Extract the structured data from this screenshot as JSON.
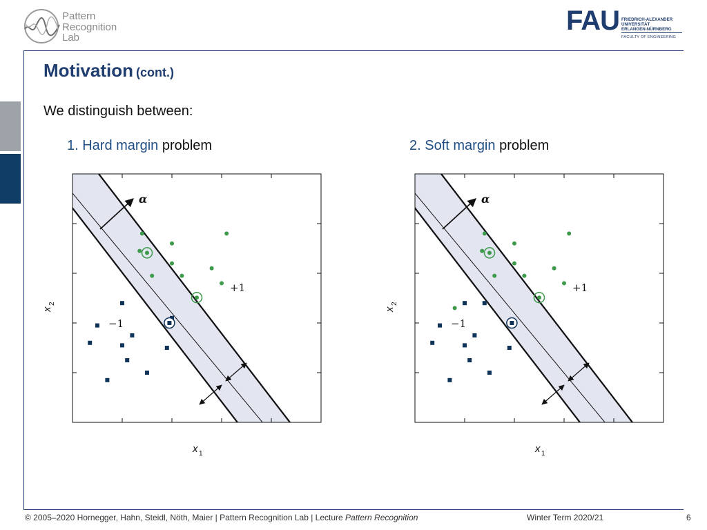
{
  "header": {
    "lab_logo_lines": [
      "Pattern",
      "Recognition",
      "Lab"
    ],
    "fau": {
      "mark": "FAU",
      "lines": [
        "FRIEDRICH-ALEXANDER",
        "UNIVERSITÄT",
        "ERLANGEN-NÜRNBERG"
      ],
      "faculty": "FACULTY OF ENGINEERING"
    }
  },
  "slide": {
    "title": "Motivation",
    "title_suffix": "(cont.)",
    "intro": "We distinguish between:",
    "items": [
      {
        "prefix": "1. Hard margin",
        "suffix": " problem"
      },
      {
        "prefix": "2. Soft margin",
        "suffix": " problem"
      }
    ]
  },
  "figures": [
    {
      "id": "hard",
      "labels": {
        "alpha": "α",
        "plus": "+1",
        "minus": "−1",
        "x1": "x",
        "x1_sub": "1",
        "x2": "x",
        "x2_sub": "2"
      },
      "positive_points": [
        [
          1.4,
          1.2
        ],
        [
          2.0,
          1.4
        ],
        [
          3.1,
          1.2
        ],
        [
          1.35,
          1.55
        ],
        [
          2.0,
          1.8
        ],
        [
          2.8,
          1.9
        ],
        [
          1.6,
          2.05
        ],
        [
          2.2,
          2.05
        ],
        [
          3.0,
          2.2
        ]
      ],
      "negative_points": [
        [
          1.0,
          2.6
        ],
        [
          0.5,
          3.05
        ],
        [
          1.2,
          3.25
        ],
        [
          1.1,
          3.75
        ],
        [
          1.9,
          3.5
        ],
        [
          2.0,
          2.9
        ],
        [
          1.0,
          3.45
        ],
        [
          0.7,
          4.15
        ],
        [
          1.5,
          4.0
        ],
        [
          0.35,
          3.4
        ]
      ],
      "support_pos": [
        [
          1.5,
          2.7
        ],
        [
          2.5,
          3.6
        ]
      ],
      "support_neg": [
        [
          1.95,
          3.0
        ]
      ]
    },
    {
      "id": "soft",
      "labels": {
        "alpha": "α",
        "plus": "+1",
        "minus": "−1",
        "x1": "x",
        "x1_sub": "1",
        "x2": "x",
        "x2_sub": "2"
      },
      "positive_points": [
        [
          1.4,
          1.2
        ],
        [
          2.0,
          1.4
        ],
        [
          3.1,
          1.2
        ],
        [
          1.35,
          1.55
        ],
        [
          2.0,
          1.8
        ],
        [
          2.8,
          1.9
        ],
        [
          1.6,
          2.05
        ],
        [
          2.2,
          2.05
        ],
        [
          3.0,
          2.2
        ],
        [
          0.8,
          2.7
        ]
      ],
      "negative_points": [
        [
          1.0,
          2.6
        ],
        [
          0.5,
          3.05
        ],
        [
          1.2,
          3.25
        ],
        [
          1.1,
          3.75
        ],
        [
          1.9,
          3.5
        ],
        [
          1.0,
          3.45
        ],
        [
          0.7,
          4.15
        ],
        [
          1.5,
          4.0
        ],
        [
          0.35,
          3.4
        ],
        [
          1.4,
          2.6
        ]
      ],
      "support_pos": [
        [
          1.5,
          2.7
        ],
        [
          2.5,
          3.6
        ]
      ],
      "support_neg": [
        [
          1.95,
          3.0
        ]
      ]
    }
  ],
  "footer": {
    "copyright": "© 2005–2020 Hornegger, Hahn, Steidl, Nöth, Maier   |   Pattern Recognition Lab   |   Lecture ",
    "course": "Pattern Recognition",
    "term": "Winter Term 2020/21",
    "page": "6"
  },
  "colors": {
    "accent": "#1f3d6e",
    "positive": "#3c9a4a",
    "negative": "#10335a",
    "margin_fill": "#e3e6f0"
  }
}
